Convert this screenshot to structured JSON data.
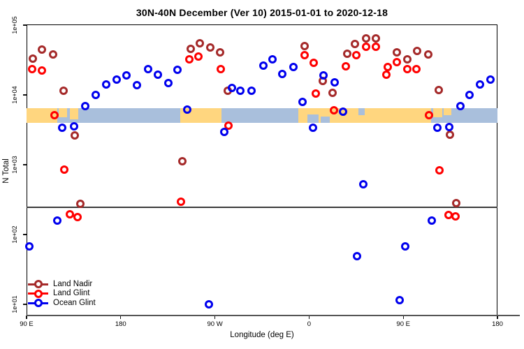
{
  "title": "30N-40N December (Ver 10)   2015-01-01 to 2020-12-18",
  "legend": {
    "items": [
      "Land Nadir",
      "Land Glint",
      "Ocean Glint"
    ]
  },
  "chart_data": {
    "type": "scatter",
    "title": "30N-40N December (Ver 10)   2015-01-01 to 2020-12-18",
    "xlabel": "Longitude (deg E)",
    "ylabel": "N Total",
    "x_axis": {
      "note": "longitude axis unwrapped eastward, 90E through 180, 90W, 0, 90E to 180",
      "range": [
        90,
        540
      ],
      "ticks": [
        90,
        180,
        270,
        360,
        450,
        540
      ],
      "tick_labels": [
        "90 E",
        "180",
        "90 W",
        "0",
        "90 E",
        "180"
      ]
    },
    "y_axis": {
      "scale": "log",
      "ticks": [
        100000,
        10000,
        1000,
        100,
        10
      ],
      "tick_labels": [
        "1e+05",
        "1e+04",
        "1e+03",
        "1e+02",
        "1e+01"
      ]
    },
    "threshold_value": 245,
    "map_strip": {
      "description": "30N-40N latitude band land/ocean map overlay",
      "land_color": "#FFD67F",
      "ocean_color": "#A9BFDC",
      "v_top": 6460,
      "v_bottom": 3980,
      "segments": [
        {
          "u1": 90,
          "u2": 119.4,
          "surface": "land"
        },
        {
          "u1": 119.4,
          "u2": 236.9,
          "surface": "ocean"
        },
        {
          "u1": 236.9,
          "u2": 276.3,
          "surface": "land"
        },
        {
          "u1": 276.3,
          "u2": 349.8,
          "surface": "ocean"
        },
        {
          "u1": 349.8,
          "u2": 476.6,
          "surface": "land"
        },
        {
          "u1": 476.6,
          "u2": 540,
          "surface": "ocean"
        }
      ],
      "patches": [
        {
          "u1": 120.7,
          "u2": 128.7,
          "surface": "land",
          "anchor": "top",
          "frac": 0.6
        },
        {
          "u1": 131.4,
          "u2": 139.4,
          "surface": "land",
          "anchor": "top",
          "frac": 0.75
        },
        {
          "u1": 478.6,
          "u2": 487.0,
          "surface": "land",
          "anchor": "top",
          "frac": 0.6
        },
        {
          "u1": 488.5,
          "u2": 496.0,
          "surface": "land",
          "anchor": "top",
          "frac": 0.5
        },
        {
          "u1": 358.4,
          "u2": 369.0,
          "surface": "ocean",
          "anchor": "bottom",
          "frac": 0.55
        },
        {
          "u1": 371.0,
          "u2": 380.0,
          "surface": "ocean",
          "anchor": "bottom",
          "frac": 0.45
        },
        {
          "u1": 407.0,
          "u2": 413.0,
          "surface": "ocean",
          "anchor": "top",
          "frac": 0.5
        }
      ]
    },
    "series": [
      {
        "name": "Land Nadir",
        "color": "#A52A2A",
        "points": [
          [
            104.7,
            45100
          ],
          [
            115.4,
            38100
          ],
          [
            96.0,
            33200
          ],
          [
            125.4,
            11500
          ],
          [
            247.1,
            45800
          ],
          [
            255.4,
            55400
          ],
          [
            265.4,
            48300
          ],
          [
            275.0,
            40500
          ],
          [
            282.3,
            11500
          ],
          [
            355.7,
            50200
          ],
          [
            372.9,
            15900
          ],
          [
            382.5,
            10700
          ],
          [
            396.3,
            38500
          ],
          [
            403.6,
            54200
          ],
          [
            414.7,
            64100
          ],
          [
            424.1,
            64100
          ],
          [
            444.1,
            40500
          ],
          [
            454.1,
            32200
          ],
          [
            463.4,
            43000
          ],
          [
            474.1,
            38400
          ],
          [
            484.1,
            11700
          ],
          [
            135.9,
            2630
          ],
          [
            494.8,
            2700
          ],
          [
            238.9,
            1130
          ],
          [
            141.4,
            275
          ],
          [
            500.4,
            280
          ]
        ]
      },
      {
        "name": "Land Glint",
        "color": "#FF0000",
        "points": [
          [
            95.3,
            23200
          ],
          [
            104.7,
            22600
          ],
          [
            116.5,
            5160
          ],
          [
            245.6,
            32200
          ],
          [
            254.5,
            35600
          ],
          [
            275.4,
            23700
          ],
          [
            282.7,
            3640
          ],
          [
            355.7,
            37500
          ],
          [
            364.6,
            28800
          ],
          [
            366.3,
            10400
          ],
          [
            384.0,
            6030
          ],
          [
            405.2,
            37000
          ],
          [
            395.2,
            25600
          ],
          [
            414.4,
            48600
          ],
          [
            424.1,
            49400
          ],
          [
            435.2,
            25200
          ],
          [
            434.1,
            19700
          ],
          [
            444.1,
            29800
          ],
          [
            454.1,
            23300
          ],
          [
            462.5,
            23300
          ],
          [
            474.7,
            5130
          ],
          [
            126.3,
            847
          ],
          [
            484.8,
            836
          ],
          [
            237.5,
            292
          ],
          [
            131.6,
            195
          ],
          [
            138.7,
            178
          ],
          [
            493.4,
            191
          ],
          [
            499.7,
            181
          ]
        ]
      },
      {
        "name": "Ocean Glint",
        "color": "#0000EE",
        "points": [
          [
            146.3,
            6960
          ],
          [
            155.9,
            10100
          ],
          [
            166.3,
            14000
          ],
          [
            175.9,
            16600
          ],
          [
            185.3,
            19000
          ],
          [
            195.3,
            13700
          ],
          [
            206.0,
            23700
          ],
          [
            215.3,
            19700
          ],
          [
            225.3,
            14800
          ],
          [
            234.2,
            22900
          ],
          [
            243.8,
            6210
          ],
          [
            286.1,
            12700
          ],
          [
            294.5,
            11500
          ],
          [
            305.0,
            11500
          ],
          [
            316.1,
            26600
          ],
          [
            325.0,
            32200
          ],
          [
            334.6,
            20000
          ],
          [
            345.0,
            25200
          ],
          [
            353.5,
            7910
          ],
          [
            374.0,
            18900
          ],
          [
            384.6,
            15300
          ],
          [
            392.4,
            5800
          ],
          [
            278.8,
            2960
          ],
          [
            363.6,
            3360
          ],
          [
            124.2,
            3400
          ],
          [
            135.2,
            3580
          ],
          [
            482.5,
            3360
          ],
          [
            493.8,
            3500
          ],
          [
            504.7,
            6960
          ],
          [
            513.6,
            10100
          ],
          [
            523.6,
            14200
          ],
          [
            533.6,
            16600
          ],
          [
            411.8,
            527
          ],
          [
            119.2,
            157
          ],
          [
            477.4,
            157
          ],
          [
            92.9,
            67
          ],
          [
            406.0,
            49
          ],
          [
            451.9,
            68
          ],
          [
            264.0,
            10
          ],
          [
            446.3,
            11.5
          ]
        ]
      }
    ]
  }
}
